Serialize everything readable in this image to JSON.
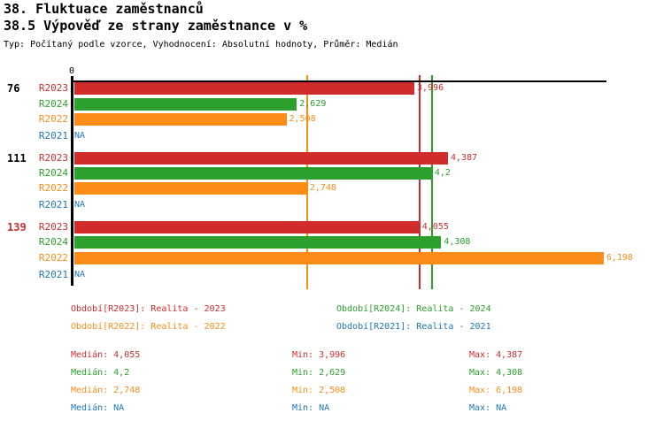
{
  "header": {
    "title": "38. Fluktuace zaměstnanců",
    "subtitle": "38.5 Výpověď ze strany zaměstnance v %",
    "meta": "Typ: Počítaný podle vzorce, Vyhodnocení: Absolutní hodnoty, Průměr: Medián"
  },
  "colors": {
    "series": {
      "R2023": "#d02c2c",
      "R2024": "#2ca02c",
      "R2022": "#fb8c17",
      "R2021": "#1f77b4"
    },
    "axis": "#000000",
    "group_label": "#000000",
    "group_label_highlighted": "#d02c2c"
  },
  "chart_data": {
    "type": "bar",
    "orientation": "horizontal",
    "value_axis": {
      "zero_label": "0",
      "min": 0,
      "max_extent": 6.23,
      "grid": false
    },
    "series_order": [
      "R2023",
      "R2024",
      "R2022",
      "R2021"
    ],
    "groups": [
      {
        "label": "76",
        "highlighted": false,
        "bars": [
          {
            "series": "R2023",
            "value": 3.996,
            "label": "3,996"
          },
          {
            "series": "R2024",
            "value": 2.629,
            "label": "2,629"
          },
          {
            "series": "R2022",
            "value": 2.508,
            "label": "2,508"
          },
          {
            "series": "R2021",
            "value": null,
            "label": "NA"
          }
        ]
      },
      {
        "label": "111",
        "highlighted": false,
        "bars": [
          {
            "series": "R2023",
            "value": 4.387,
            "label": "4,387"
          },
          {
            "series": "R2024",
            "value": 4.2,
            "label": "4,2"
          },
          {
            "series": "R2022",
            "value": 2.748,
            "label": "2,748"
          },
          {
            "series": "R2021",
            "value": null,
            "label": "NA"
          }
        ]
      },
      {
        "label": "139",
        "highlighted": true,
        "bars": [
          {
            "series": "R2023",
            "value": 4.055,
            "label": "4,055"
          },
          {
            "series": "R2024",
            "value": 4.308,
            "label": "4,308"
          },
          {
            "series": "R2022",
            "value": 6.198,
            "label": "6,198"
          },
          {
            "series": "R2021",
            "value": null,
            "label": "NA"
          }
        ]
      }
    ],
    "median_lines": [
      {
        "series": "R2023",
        "value": 4.055
      },
      {
        "series": "R2024",
        "value": 4.2
      },
      {
        "series": "R2022",
        "value": 2.748
      }
    ],
    "legend": {
      "left": [
        {
          "series": "R2023",
          "text": "Období[R2023]: Realita - 2023"
        },
        {
          "series": "R2022",
          "text": "Období[R2022]: Realita - 2022"
        }
      ],
      "right": [
        {
          "series": "R2024",
          "text": "Období[R2024]: Realita - 2024"
        },
        {
          "series": "R2021",
          "text": "Období[R2021]: Realita - 2021"
        }
      ]
    },
    "stats": [
      {
        "series": "R2023",
        "median": "Medián: 4,055",
        "min": "Min: 3,996",
        "max": "Max: 4,387"
      },
      {
        "series": "R2024",
        "median": "Medián: 4,2",
        "min": "Min: 2,629",
        "max": "Max: 4,308"
      },
      {
        "series": "R2022",
        "median": "Medián: 2,748",
        "min": "Min: 2,508",
        "max": "Max: 6,198"
      },
      {
        "series": "R2021",
        "median": "Medián: NA",
        "min": "Min: NA",
        "max": "Max: NA"
      }
    ]
  }
}
